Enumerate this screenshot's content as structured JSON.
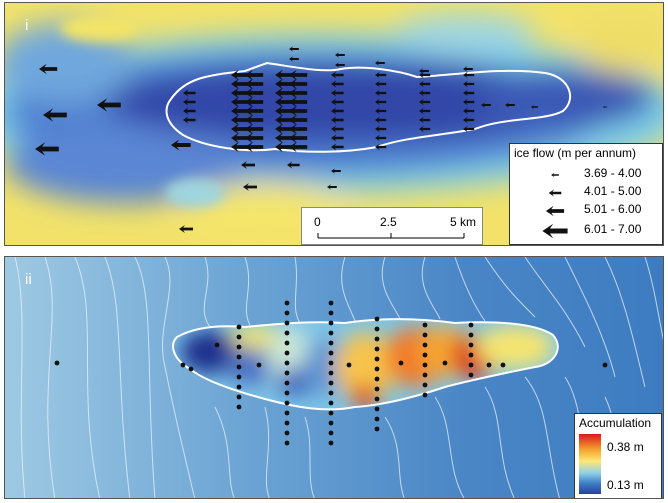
{
  "panels": {
    "top_label": "i",
    "bottom_label": "ii"
  },
  "flow_legend": {
    "title": "ice flow (m per annum)",
    "classes": [
      {
        "label": "3.69 - 4.00"
      },
      {
        "label": "4.01 - 5.00"
      },
      {
        "label": "5.01 - 6.00"
      },
      {
        "label": "6.01 - 7.00"
      }
    ]
  },
  "scale_bar": {
    "ticks": [
      "0",
      "2.5",
      "5 km"
    ]
  },
  "accumulation_legend": {
    "title": "Accumulation",
    "max_label": "0.38 m",
    "min_label": "0.13 m"
  },
  "colors": {
    "ice_low": "#2a3f9e",
    "ice_mid": "#8fd0e8",
    "ice_high": "#ffe873",
    "accumulation_high": "#d7191c",
    "outline": "#ffffff",
    "arrow": "#111111"
  }
}
